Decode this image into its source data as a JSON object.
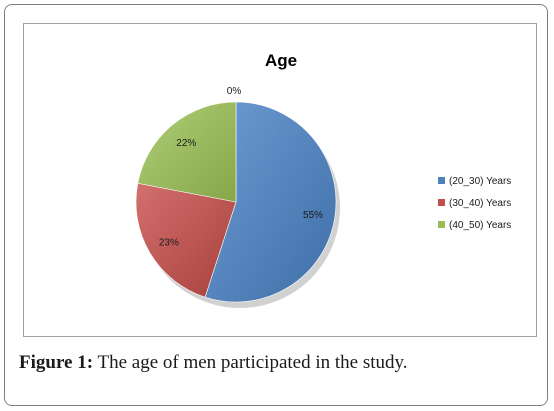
{
  "chart_data": {
    "type": "pie",
    "title": "Age",
    "categories": [
      "(20_30) Years",
      "(30_40) Years",
      "(40_50) Years"
    ],
    "values": [
      55,
      23,
      22
    ],
    "labels": [
      "55%",
      "23%",
      "22%"
    ],
    "extra_label": "0%",
    "colors": [
      "#4f81bd",
      "#c0504d",
      "#9bbb59"
    ],
    "legend_position": "right"
  },
  "caption": {
    "label": "Figure 1:",
    "text": " The age of men participated in the study."
  }
}
